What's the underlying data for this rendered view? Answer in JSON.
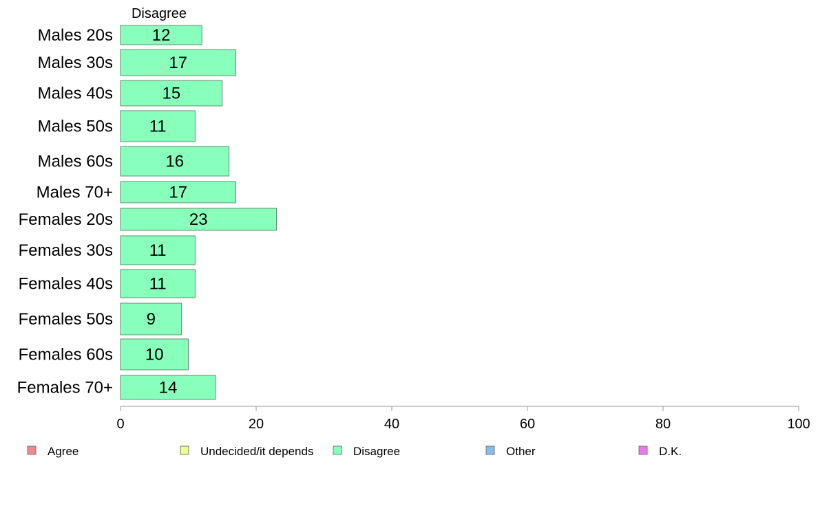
{
  "chart_data": {
    "type": "bar",
    "orientation": "horizontal",
    "series_title": "Disagree",
    "categories": [
      "Males 20s",
      "Males 30s",
      "Males 40s",
      "Males 50s",
      "Males 60s",
      "Males 70+",
      "Females 20s",
      "Females 30s",
      "Females 40s",
      "Females 50s",
      "Females 60s",
      "Females 70+"
    ],
    "series": [
      {
        "name": "Disagree",
        "color": "#88ffbb",
        "values": [
          12,
          17,
          15,
          11,
          16,
          17,
          23,
          11,
          11,
          9,
          10,
          14
        ]
      }
    ],
    "xlim": [
      0,
      100
    ],
    "xticks": [
      "0",
      "20",
      "40",
      "60",
      "80",
      "100"
    ],
    "grid": false,
    "legend_position": "bottom",
    "legend": [
      {
        "label": "Agree",
        "color": "#f08a8a"
      },
      {
        "label": "Undecided/it depends",
        "color": "#eeff88"
      },
      {
        "label": "Disagree",
        "color": "#88ffbb"
      },
      {
        "label": "Other",
        "color": "#88bbee"
      },
      {
        "label": "D.K.",
        "color": "#ee77ee"
      }
    ]
  }
}
